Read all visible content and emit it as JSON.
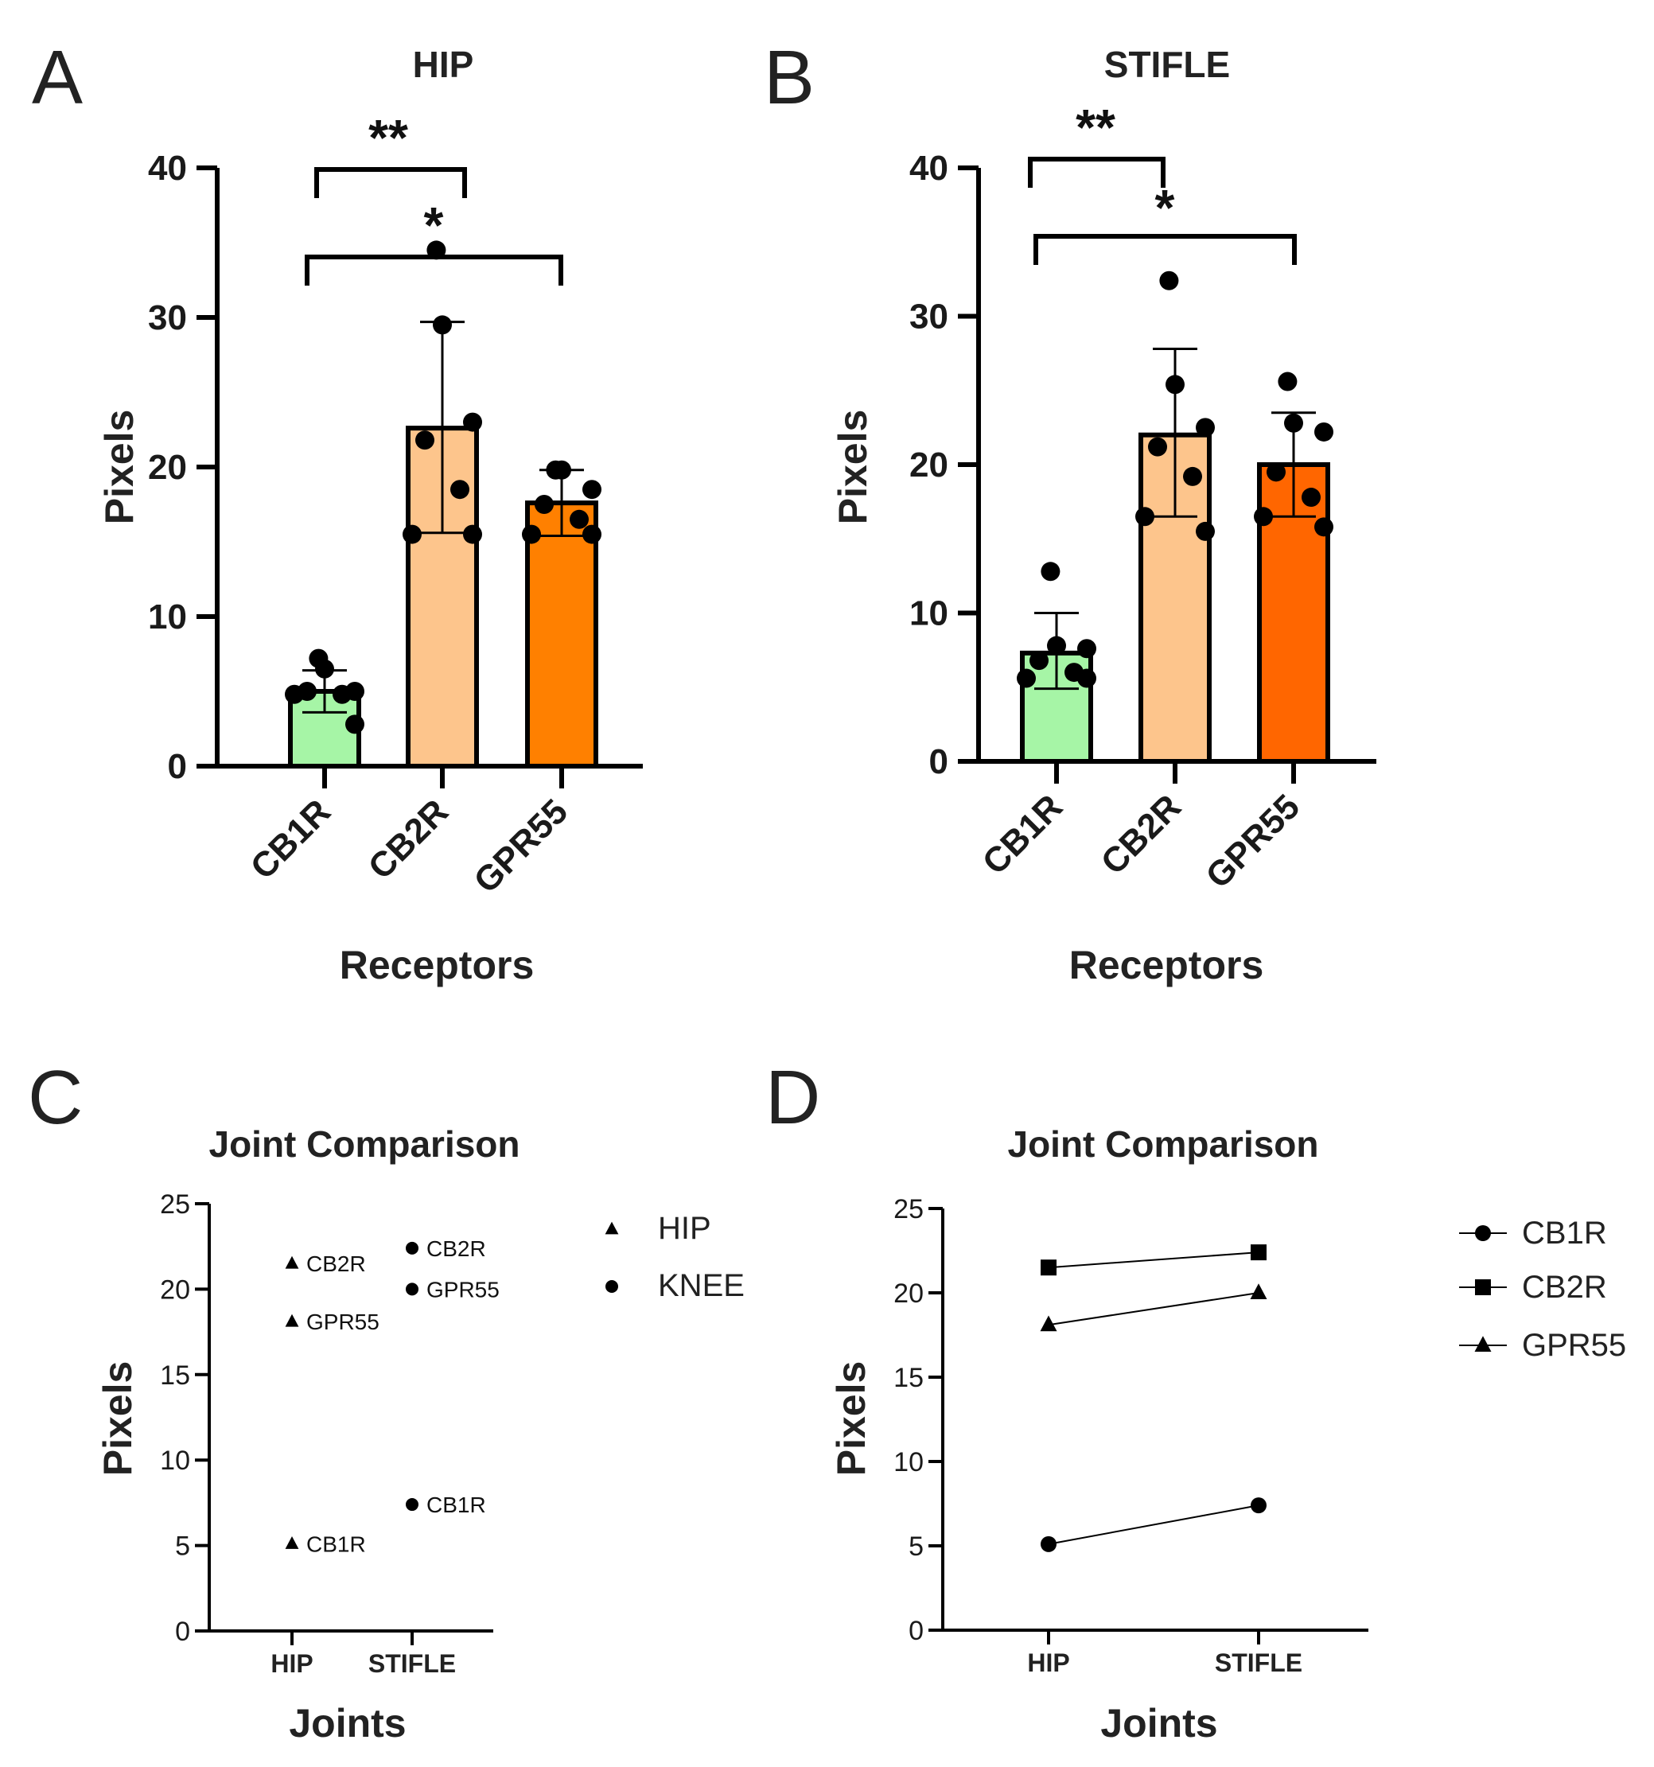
{
  "chart_data": [
    {
      "id": "A",
      "type": "bar",
      "panel_label": "A",
      "title": "HIP",
      "xlabel": "Receptors",
      "ylabel": "Pixels",
      "ylim": [
        0,
        40
      ],
      "yticks": [
        0,
        10,
        20,
        30,
        40
      ],
      "categories": [
        "CB1R",
        "CB2R",
        "GPR55"
      ],
      "values": [
        5,
        22.6,
        17.6
      ],
      "colors": [
        "#a6f5a6",
        "#fdc58c",
        "#ff8000"
      ],
      "error_low": [
        3.6,
        15.6,
        15.4
      ],
      "error_high": [
        6.4,
        29.7,
        19.8
      ],
      "points": [
        [
          7.2,
          6.5,
          5,
          5,
          4.8,
          4.8,
          2.8
        ],
        [
          34.5,
          29.5,
          23,
          21.8,
          18.5,
          15.5,
          15.5
        ],
        [
          19.8,
          19.8,
          18.5,
          17.5,
          16.5,
          15.5,
          15.5
        ]
      ],
      "significance": [
        {
          "from": 0,
          "to": 1,
          "label": "**"
        },
        {
          "from": 0,
          "to": 2,
          "label": "*"
        }
      ]
    },
    {
      "id": "B",
      "type": "bar",
      "panel_label": "B",
      "title": "STIFLE",
      "xlabel": "Receptors",
      "ylabel": "Pixels",
      "ylim": [
        0,
        40
      ],
      "yticks": [
        0,
        10,
        20,
        30,
        40
      ],
      "categories": [
        "CB1R",
        "CB2R",
        "GPR55"
      ],
      "values": [
        7.3,
        22,
        20
      ],
      "colors": [
        "#a6f5a6",
        "#fdc58c",
        "#ff6600"
      ],
      "error_low": [
        4.9,
        16.5,
        16.5
      ],
      "error_high": [
        10,
        27.8,
        23.5
      ],
      "points": [
        [
          12.8,
          7.8,
          7.6,
          6.8,
          6,
          5.6,
          5.6
        ],
        [
          32.4,
          25.4,
          22.5,
          21.2,
          19.2,
          16.5,
          15.5
        ],
        [
          25.6,
          22.8,
          22.2,
          19.5,
          17.8,
          16.5,
          15.8
        ]
      ],
      "significance": [
        {
          "from": 0,
          "to": 1,
          "label": "**"
        },
        {
          "from": 0,
          "to": 2,
          "label": "*"
        }
      ]
    },
    {
      "id": "C",
      "type": "scatter",
      "panel_label": "C",
      "title": "Joint Comparison",
      "xlabel": "Joints",
      "ylabel": "Pixels",
      "ylim": [
        0,
        25
      ],
      "yticks": [
        0,
        5,
        10,
        15,
        20,
        25
      ],
      "categories": [
        "HIP",
        "STIFLE"
      ],
      "legend": [
        {
          "marker": "triangle",
          "label": "HIP"
        },
        {
          "marker": "circle",
          "label": "KNEE"
        }
      ],
      "series": [
        {
          "name": "HIP",
          "marker": "triangle",
          "x": "HIP",
          "points": [
            {
              "label": "CB2R",
              "value": 21.5
            },
            {
              "label": "GPR55",
              "value": 18.1
            },
            {
              "label": "CB1R",
              "value": 5.1
            }
          ]
        },
        {
          "name": "KNEE",
          "marker": "circle",
          "x": "STIFLE",
          "points": [
            {
              "label": "CB2R",
              "value": 22.4
            },
            {
              "label": "GPR55",
              "value": 20
            },
            {
              "label": "CB1R",
              "value": 7.4
            }
          ]
        }
      ]
    },
    {
      "id": "D",
      "type": "line",
      "panel_label": "D",
      "title": "Joint Comparison",
      "xlabel": "Joints",
      "ylabel": "Pixels",
      "ylim": [
        0,
        25
      ],
      "yticks": [
        0,
        5,
        10,
        15,
        20,
        25
      ],
      "categories": [
        "HIP",
        "STIFLE"
      ],
      "series": [
        {
          "name": "CB1R",
          "marker": "circle",
          "values": [
            5.1,
            7.4
          ]
        },
        {
          "name": "CB2R",
          "marker": "square",
          "values": [
            21.5,
            22.4
          ]
        },
        {
          "name": "GPR55",
          "marker": "triangle",
          "values": [
            18.1,
            20
          ]
        }
      ]
    }
  ]
}
